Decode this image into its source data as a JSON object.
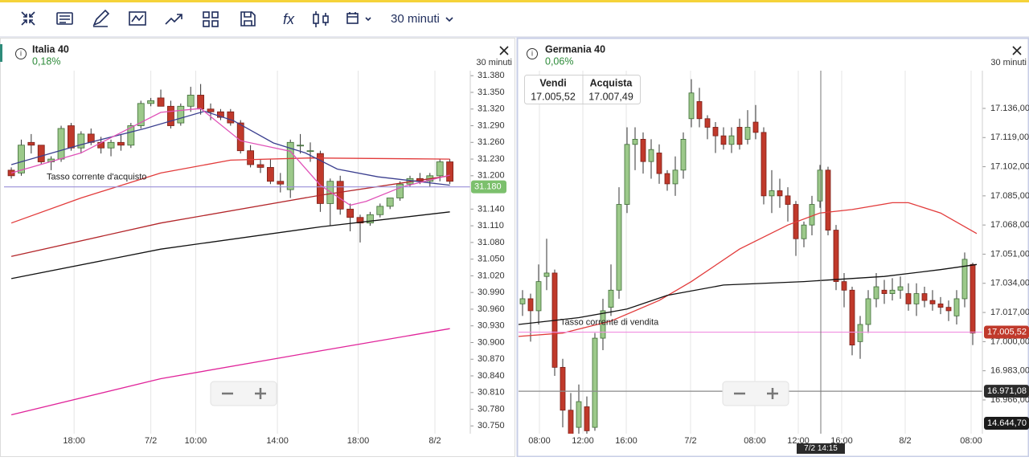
{
  "toolbar": {
    "interval": "30 minuti"
  },
  "panels": [
    {
      "title": "Italia 40",
      "change": "0,18%",
      "interval": "30 minuti",
      "chart_data": {
        "type": "candlestick",
        "open": [
          31210,
          31205,
          31260,
          31255,
          31225,
          31230,
          31290,
          31250,
          31275,
          31260,
          31250,
          31260,
          31255,
          31290,
          31330,
          31340,
          31325,
          31295,
          31325,
          31345,
          31320,
          31315,
          31315,
          31295,
          31245,
          31220,
          31215,
          31190,
          31175,
          31255,
          31245,
          31240,
          31150,
          31190,
          31140,
          31125,
          31115,
          31130,
          31145,
          31160,
          31185,
          31195,
          31190,
          31200,
          31225
        ],
        "high": [
          31215,
          31265,
          31275,
          31255,
          31235,
          31290,
          31295,
          31280,
          31285,
          31270,
          31265,
          31275,
          31295,
          31335,
          31340,
          31355,
          31335,
          31330,
          31360,
          31365,
          31330,
          31320,
          31320,
          31300,
          31255,
          31230,
          31230,
          31205,
          31265,
          31275,
          31260,
          31245,
          31195,
          31200,
          31150,
          31130,
          31135,
          31150,
          31160,
          31190,
          31200,
          31205,
          31205,
          31230,
          31230
        ],
        "low": [
          31195,
          31200,
          31240,
          31220,
          31210,
          31225,
          31245,
          31240,
          31255,
          31240,
          31235,
          31245,
          31250,
          31285,
          31325,
          31330,
          31285,
          31290,
          31315,
          31310,
          31300,
          31300,
          31290,
          31240,
          31215,
          31205,
          31185,
          31170,
          31160,
          31240,
          31225,
          31135,
          31110,
          31130,
          31100,
          31080,
          31110,
          31125,
          31140,
          31155,
          31180,
          31185,
          31180,
          31190,
          31185
        ],
        "close": [
          31200,
          31255,
          31255,
          31225,
          31230,
          31285,
          31250,
          31275,
          31260,
          31250,
          31260,
          31255,
          31290,
          31330,
          31335,
          31325,
          31290,
          31325,
          31345,
          31320,
          31315,
          31305,
          31295,
          31245,
          31220,
          31215,
          31190,
          31185,
          31260,
          31255,
          31245,
          31150,
          31190,
          31140,
          31125,
          31115,
          31130,
          31145,
          31160,
          31185,
          31195,
          31190,
          31200,
          31225,
          31190
        ],
        "xlim": [
          -0.73,
          46.05
        ],
        "ylim": [
          30736,
          31389
        ],
        "xticks": [
          {
            "value": 6.3,
            "label": "18:00"
          },
          {
            "value": 14.0,
            "label": "7/2"
          },
          {
            "value": 18.5,
            "label": "10:00"
          },
          {
            "value": 26.7,
            "label": "14:00"
          },
          {
            "value": 34.8,
            "label": "18:00"
          },
          {
            "value": 42.5,
            "label": "8/2"
          }
        ],
        "yticks": [
          {
            "value": 31380,
            "label": "31.380"
          },
          {
            "value": 31350,
            "label": "31.350"
          },
          {
            "value": 31320,
            "label": "31.320"
          },
          {
            "value": 31290,
            "label": "31.290"
          },
          {
            "value": 31260,
            "label": "31.260"
          },
          {
            "value": 31230,
            "label": "31.230"
          },
          {
            "value": 31200,
            "label": "31.200"
          },
          {
            "value": 31140,
            "label": "31.140"
          },
          {
            "value": 31110,
            "label": "31.110"
          },
          {
            "value": 31080,
            "label": "31.080"
          },
          {
            "value": 31050,
            "label": "31.050"
          },
          {
            "value": 31020,
            "label": "31.020"
          },
          {
            "value": 30990,
            "label": "30.990"
          },
          {
            "value": 30960,
            "label": "30.960"
          },
          {
            "value": 30930,
            "label": "30.930"
          },
          {
            "value": 30900,
            "label": "30.900"
          },
          {
            "value": 30870,
            "label": "30.870"
          },
          {
            "value": 30840,
            "label": "30.840"
          },
          {
            "value": 30810,
            "label": "30.810"
          },
          {
            "value": 30780,
            "label": "30.780"
          },
          {
            "value": 30750,
            "label": "30.750"
          }
        ],
        "lines": [
          {
            "color": "#e23b3b",
            "x": [
              0,
              7,
              15,
              22,
              30,
              44
            ],
            "values": [
              31115,
              31160,
              31205,
              31228,
              31232,
              31230
            ]
          },
          {
            "color": "#b3262a",
            "x": [
              0,
              15,
              31,
              44
            ],
            "values": [
              31055,
              31115,
              31165,
              31200
            ]
          },
          {
            "color": "#111111",
            "x": [
              0,
              15,
              31,
              44
            ],
            "values": [
              31015,
              31068,
              31108,
              31135
            ]
          },
          {
            "color": "#e0249a",
            "x": [
              0,
              15,
              31,
              44
            ],
            "values": [
              30770,
              30835,
              30885,
              30925
            ]
          },
          {
            "color": "#3b3f8f",
            "x": [
              0,
              7,
              13.4,
              19.4,
              22.3,
              26.3,
              29.5,
              32.7,
              36.8,
              44
            ],
            "values": [
              31220,
              31256,
              31285,
              31316,
              31299,
              31259,
              31241,
              31212,
              31198,
              31183
            ]
          },
          {
            "color": "#e052b8",
            "x": [
              0,
              7,
              15,
              19,
              23,
              28,
              31,
              34,
              35.6,
              39.2,
              44
            ],
            "values": [
              31205,
              31241,
              31314,
              31321,
              31263,
              31244,
              31183,
              31147,
              31154,
              31180,
              31201
            ]
          }
        ],
        "price_lines": [
          {
            "value": 31180,
            "label": "31.180",
            "text": "Tasso corrente d'acquisto",
            "color": "#9a8fd8",
            "tag_color": "#7cc06d"
          }
        ]
      }
    },
    {
      "title": "Germania 40",
      "change": "0,06%",
      "interval": "30 minuti",
      "quote": {
        "sell_label": "Vendi",
        "sell": "17.005,52",
        "buy_label": "Acquista",
        "buy": "17.007,49"
      },
      "chart_data": {
        "type": "candlestick",
        "open": [
          17022,
          17025,
          17018,
          17038,
          17040,
          16985,
          16960,
          16950,
          16962,
          16950,
          17002,
          17020,
          17030,
          17080,
          17115,
          17118,
          17105,
          17110,
          17098,
          17092,
          17100,
          17130,
          17140,
          17130,
          17125,
          17120,
          17115,
          17125,
          17118,
          17128,
          17122,
          17085,
          17088,
          17085,
          17080,
          17060,
          17068,
          17082,
          17100,
          17065,
          17035,
          17030,
          17000,
          17010,
          17025,
          17030,
          17028,
          17030,
          17028,
          17022,
          17028,
          17024,
          17022,
          17020,
          17015,
          17025,
          17045
        ],
        "high": [
          17030,
          17028,
          17045,
          17060,
          17042,
          16990,
          16970,
          16975,
          16968,
          17005,
          17025,
          17045,
          17090,
          17125,
          17125,
          17122,
          17118,
          17115,
          17100,
          17108,
          17122,
          17153,
          17148,
          17132,
          17128,
          17125,
          17125,
          17130,
          17135,
          17138,
          17125,
          17100,
          17095,
          17090,
          17082,
          17070,
          17085,
          17103,
          17102,
          17068,
          17040,
          17032,
          17015,
          17030,
          17040,
          17036,
          17037,
          17038,
          17034,
          17034,
          17032,
          17030,
          17026,
          17024,
          17030,
          17052,
          17046
        ],
        "low": [
          17015,
          17000,
          17010,
          17030,
          16980,
          16950,
          16938,
          16940,
          16940,
          16948,
          16995,
          17015,
          17025,
          17075,
          17100,
          17098,
          17095,
          17092,
          17088,
          17085,
          17095,
          17125,
          17125,
          17118,
          17110,
          17112,
          17110,
          17112,
          17115,
          17118,
          17080,
          17075,
          17078,
          17070,
          17050,
          17055,
          17062,
          17078,
          17062,
          17030,
          17020,
          16992,
          16990,
          17005,
          17020,
          17022,
          17024,
          17025,
          17018,
          17015,
          17020,
          17018,
          17016,
          17012,
          17010,
          17020,
          16998
        ],
        "close": [
          17025,
          17018,
          17035,
          17040,
          16985,
          16960,
          16945,
          16965,
          16948,
          17002,
          17018,
          17030,
          17080,
          17115,
          17118,
          17105,
          17112,
          17098,
          17092,
          17100,
          17118,
          17145,
          17130,
          17125,
          17120,
          17115,
          17120,
          17115,
          17125,
          17122,
          17085,
          17088,
          17085,
          17080,
          17060,
          17068,
          17080,
          17100,
          17065,
          17035,
          17030,
          16998,
          17010,
          17025,
          17032,
          17028,
          17030,
          17032,
          17022,
          17028,
          17024,
          17022,
          17020,
          17018,
          17025,
          17048,
          17005
        ],
        "xlim": [
          -0.5,
          57.2
        ],
        "ylim": [
          16946.3,
          17158
        ],
        "xticks": [
          {
            "value": 2.1,
            "label": "08:00"
          },
          {
            "value": 7.5,
            "label": "12:00"
          },
          {
            "value": 12.9,
            "label": "16:00"
          },
          {
            "value": 20.9,
            "label": "7/2"
          },
          {
            "value": 28.9,
            "label": "08:00"
          },
          {
            "value": 34.3,
            "label": "12:00"
          },
          {
            "value": 39.7,
            "label": "16:00"
          },
          {
            "value": 47.6,
            "label": "8/2"
          },
          {
            "value": 55.8,
            "label": "08:00"
          }
        ],
        "yticks": [
          {
            "value": 17136,
            "label": "17.136,00"
          },
          {
            "value": 17119,
            "label": "17.119,00"
          },
          {
            "value": 17102,
            "label": "17.102,00"
          },
          {
            "value": 17085,
            "label": "17.085,00"
          },
          {
            "value": 17068,
            "label": "17.068,00"
          },
          {
            "value": 17051,
            "label": "17.051,00"
          },
          {
            "value": 17034,
            "label": "17.034,00"
          },
          {
            "value": 17017,
            "label": "17.017,00"
          },
          {
            "value": 17000,
            "label": "17.000,00"
          },
          {
            "value": 16983,
            "label": "16.983,00"
          },
          {
            "value": 16966,
            "label": "16.966,00"
          }
        ],
        "lines": [
          {
            "color": "#e23b3b",
            "x": [
              -0.5,
              5,
              11,
              17,
              21,
              27,
              33,
              37,
              41,
              46,
              48,
              52,
              56.5
            ],
            "values": [
              17003,
              17005,
              17012,
              17024,
              17035,
              17054,
              17068,
              17075,
              17077,
              17081,
              17081,
              17075,
              17063
            ]
          },
          {
            "color": "#111111",
            "x": [
              -0.5,
              7,
              13,
              18,
              25,
              35,
              45,
              52,
              56.5
            ],
            "values": [
              17010,
              17014,
              17019,
              17027,
              17033,
              17035,
              17038,
              17042,
              17045
            ]
          }
        ],
        "price_lines": [
          {
            "value": 17005.52,
            "label": "17.005,52",
            "text": "Tasso corrente di vendita",
            "color": "#f08ee0",
            "tag_color": "#c0392b"
          },
          {
            "value": 16971.08,
            "label": "16.971,08",
            "color": "#8a8a8a",
            "tag_color": "#2b2b2b"
          }
        ],
        "tags": [
          {
            "value": 14644.7,
            "label": "14.644,70"
          }
        ],
        "crosshair": {
          "x": 37.1,
          "label": "7/2 14:15"
        }
      }
    }
  ]
}
